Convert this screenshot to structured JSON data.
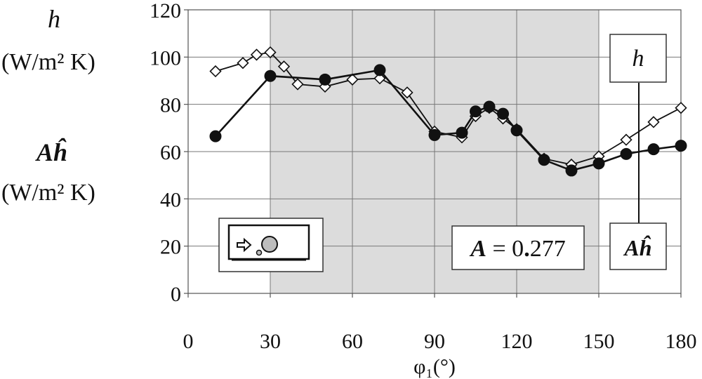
{
  "chart_data": {
    "type": "line",
    "x_label": "φ₁(°)",
    "y_labels": [
      {
        "symbol": "h",
        "unit": "(W/m² K)"
      },
      {
        "symbol": "Aĥ",
        "unit": "(W/m² K)"
      }
    ],
    "xlim": [
      0,
      180
    ],
    "ylim": [
      0,
      120
    ],
    "x_ticks": [
      "0",
      "30",
      "60",
      "90",
      "120",
      "150",
      "180"
    ],
    "y_ticks": [
      "0",
      "20",
      "40",
      "60",
      "80",
      "100",
      "120"
    ],
    "shaded_region": [
      30,
      150
    ],
    "grid": true,
    "series": [
      {
        "name": "h",
        "marker": "open-diamond",
        "points": [
          [
            10,
            94
          ],
          [
            20,
            97.5
          ],
          [
            25,
            101
          ],
          [
            30,
            102
          ],
          [
            35,
            96
          ],
          [
            40,
            88.5
          ],
          [
            50,
            87.5
          ],
          [
            60,
            90.5
          ],
          [
            70,
            91
          ],
          [
            80,
            85
          ],
          [
            90,
            68.5
          ],
          [
            100,
            66
          ],
          [
            105,
            75
          ],
          [
            110,
            78.5
          ],
          [
            115,
            74
          ],
          [
            120,
            69.5
          ],
          [
            130,
            57
          ],
          [
            140,
            54.5
          ],
          [
            150,
            58
          ],
          [
            160,
            65
          ],
          [
            170,
            72.5
          ],
          [
            180,
            78.5
          ]
        ]
      },
      {
        "name": "Aĥ",
        "marker": "filled-circle",
        "points": [
          [
            10,
            66.5
          ],
          [
            30,
            92
          ],
          [
            50,
            90.5
          ],
          [
            70,
            94.5
          ],
          [
            90,
            67
          ],
          [
            100,
            68
          ],
          [
            105,
            77
          ],
          [
            110,
            79
          ],
          [
            115,
            76
          ],
          [
            120,
            69
          ],
          [
            130,
            56.5
          ],
          [
            140,
            52
          ],
          [
            150,
            55
          ],
          [
            160,
            59
          ],
          [
            170,
            61
          ],
          [
            180,
            62.5
          ]
        ]
      }
    ],
    "annotations": {
      "a_box": {
        "var": "A",
        "eq": " = 0",
        "dot": ".",
        "val": "277"
      },
      "h_label": "h",
      "ah_label": "Aĥ"
    }
  }
}
